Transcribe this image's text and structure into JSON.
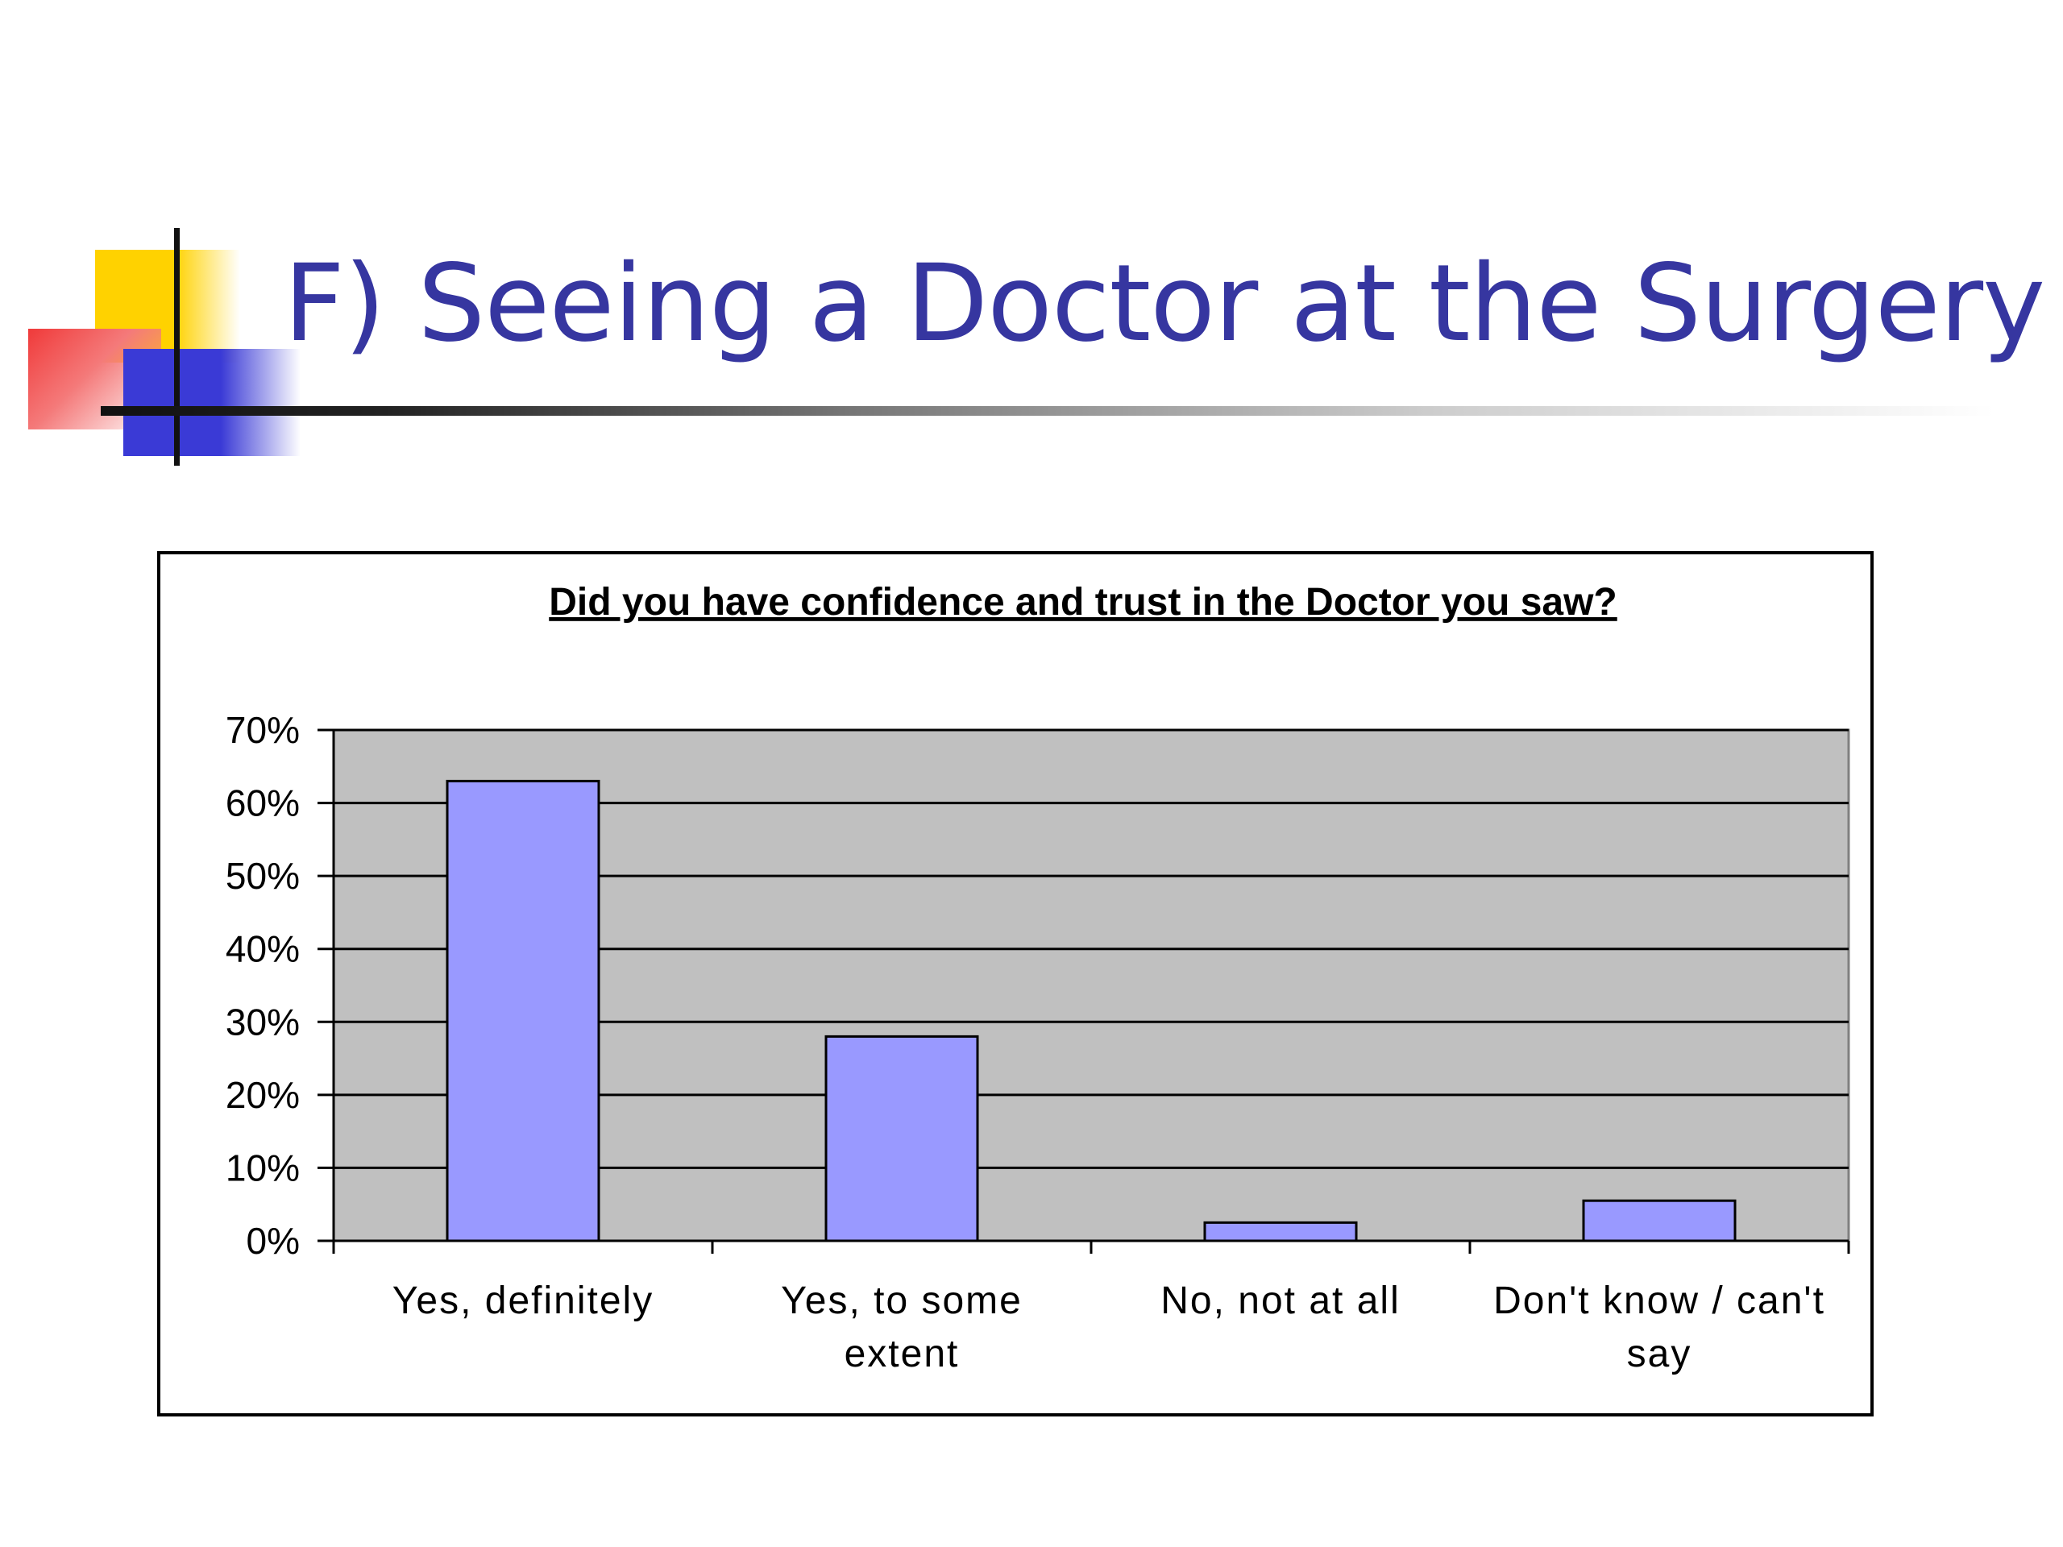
{
  "slide": {
    "title": "F) Seeing a Doctor at the Surgery"
  },
  "colors": {
    "title": "#3636a0",
    "bar_fill": "#9999ff",
    "plot_background": "#c0c0c0",
    "gridline": "#000000"
  },
  "chart_data": {
    "type": "bar",
    "title": "Did you have confidence and trust in the Doctor you saw?",
    "xlabel": "",
    "ylabel": "",
    "categories": [
      [
        "Yes, definitely"
      ],
      [
        "Yes, to some",
        "extent"
      ],
      [
        "No, not at all"
      ],
      [
        "Don't know / can't",
        "say"
      ]
    ],
    "values": [
      63,
      28,
      2.5,
      5.5
    ],
    "ylim": [
      0,
      70
    ],
    "yticks": [
      0,
      10,
      20,
      30,
      40,
      50,
      60,
      70
    ],
    "ytick_labels": [
      "0%",
      "10%",
      "20%",
      "30%",
      "40%",
      "50%",
      "60%",
      "70%"
    ],
    "grid": true,
    "legend": "none"
  }
}
